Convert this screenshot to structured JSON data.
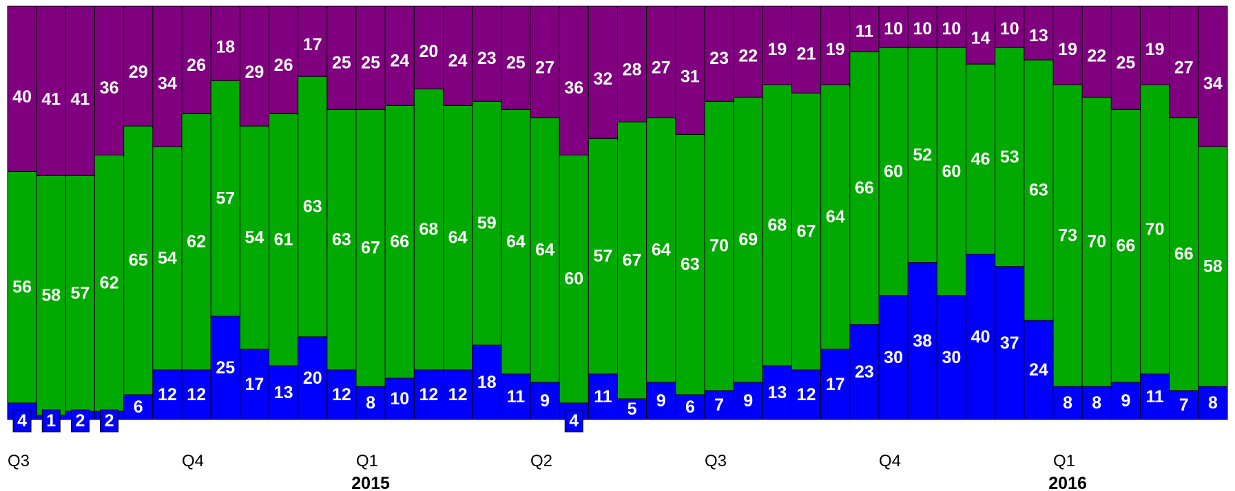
{
  "chart_data": {
    "type": "bar",
    "stacked": true,
    "normalized_to": 100,
    "ylim": [
      0,
      100
    ],
    "grid": false,
    "legend": "none",
    "colors": {
      "bottom": "#0000FF",
      "middle": "#00AA00",
      "top": "#800080"
    },
    "series": [
      {
        "values": [
          4,
          1,
          2,
          2,
          6,
          12,
          12,
          25,
          17,
          13,
          20,
          12,
          8,
          10,
          12,
          12,
          18,
          11,
          9,
          4,
          11,
          5,
          9,
          6,
          7,
          9,
          13,
          12,
          17,
          23,
          30,
          38,
          30,
          40,
          37,
          24,
          8,
          8,
          9,
          11,
          7,
          8
        ]
      },
      {
        "values": [
          56,
          58,
          57,
          62,
          65,
          54,
          62,
          57,
          54,
          61,
          63,
          63,
          67,
          66,
          68,
          64,
          59,
          64,
          64,
          60,
          57,
          67,
          64,
          63,
          70,
          69,
          68,
          67,
          64,
          66,
          60,
          52,
          60,
          46,
          53,
          63,
          73,
          70,
          66,
          70,
          66,
          58
        ]
      },
      {
        "values": [
          40,
          41,
          41,
          36,
          29,
          34,
          26,
          18,
          29,
          26,
          17,
          25,
          25,
          24,
          20,
          24,
          23,
          25,
          27,
          36,
          32,
          28,
          27,
          31,
          23,
          22,
          19,
          21,
          19,
          11,
          10,
          10,
          10,
          14,
          10,
          13,
          19,
          22,
          25,
          19,
          27,
          34
        ]
      }
    ],
    "x_tick_labels": [
      {
        "index": 0,
        "label": "Q3"
      },
      {
        "index": 6,
        "label": "Q4"
      },
      {
        "index": 12,
        "label": "Q1"
      },
      {
        "index": 18,
        "label": "Q2"
      },
      {
        "index": 24,
        "label": "Q3"
      },
      {
        "index": 30,
        "label": "Q4"
      },
      {
        "index": 36,
        "label": "Q1"
      }
    ],
    "year_labels": [
      {
        "index": 12,
        "label": "2015"
      },
      {
        "index": 36,
        "label": "2016"
      }
    ]
  }
}
